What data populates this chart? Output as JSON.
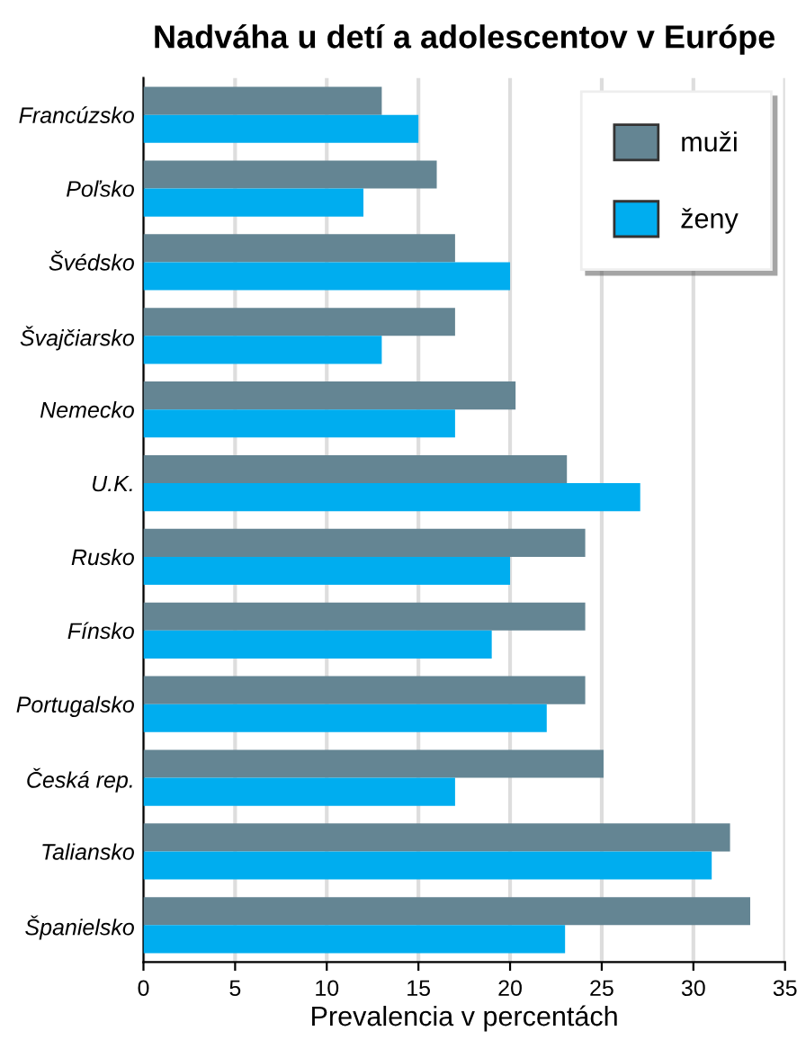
{
  "chart_data": {
    "type": "bar",
    "orientation": "horizontal",
    "title": "Nadváha u detí a adolescentov v Európe",
    "xlabel": "Prevalencia v percentách",
    "categories": [
      "Francúzsko",
      "Poľsko",
      "Švédsko",
      "Švajčiarsko",
      "Nemecko",
      "U.K.",
      "Rusko",
      "Fínsko",
      "Portugalsko",
      "Česká rep.",
      "Taliansko",
      "Španielsko"
    ],
    "series": [
      {
        "name": "muži",
        "color": "#648593",
        "values": [
          13,
          16,
          17,
          17,
          20.3,
          23.1,
          24.1,
          24.1,
          24.1,
          25.1,
          32,
          33.1
        ]
      },
      {
        "name": "ženy",
        "color": "#00adef",
        "values": [
          15,
          12,
          20,
          13,
          17,
          27.1,
          20,
          19,
          22,
          17,
          31,
          23
        ]
      }
    ],
    "xlim": [
      0,
      35
    ],
    "xticks": [
      0,
      5,
      10,
      15,
      20,
      25,
      30,
      35
    ],
    "grid": "x",
    "legend": "top right"
  }
}
